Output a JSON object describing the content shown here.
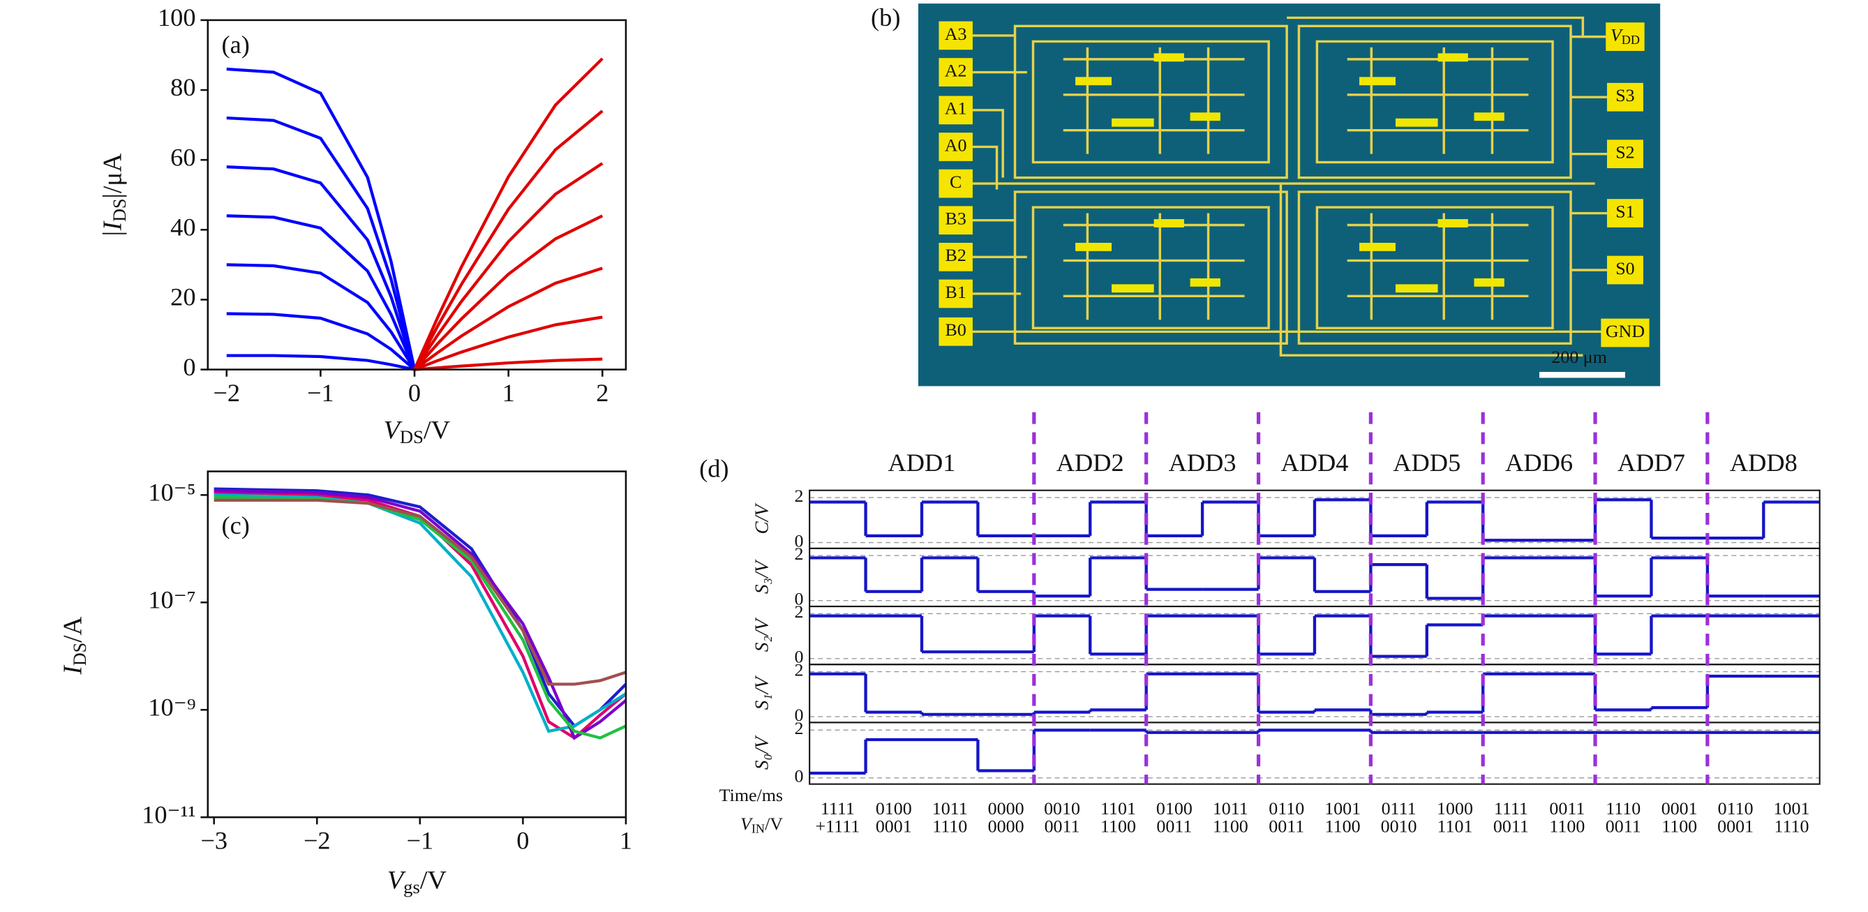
{
  "chart_data": [
    {
      "type": "line",
      "label": "(a)",
      "xlabel": [
        "V",
        "DS",
        "/V"
      ],
      "ylabel": [
        "|I",
        "DS",
        "|/μA"
      ],
      "x": [
        -2,
        -1.5,
        -1,
        -0.5,
        -0.25,
        0,
        0.25,
        0.5,
        1,
        1.5,
        2
      ],
      "xlim": [
        -2.2,
        2.25
      ],
      "ylim": [
        0,
        100
      ],
      "xticks": [
        {
          "value": -2,
          "label": "−2"
        },
        {
          "value": -1,
          "label": "−1"
        },
        0,
        1,
        2
      ],
      "yticks": [
        0,
        20,
        40,
        60,
        80,
        100
      ],
      "series": [
        {
          "color": "#0000ff",
          "values": [
            86,
            85.1,
            79.1,
            55.0,
            31.0,
            0,
            null,
            null,
            null,
            null,
            null
          ]
        },
        {
          "color": "#0000ff",
          "values": [
            72,
            71.3,
            66.2,
            46.1,
            25.9,
            0,
            null,
            null,
            null,
            null,
            null
          ]
        },
        {
          "color": "#0000ff",
          "values": [
            58,
            57.4,
            53.4,
            37.1,
            20.9,
            0,
            null,
            null,
            null,
            null,
            null
          ]
        },
        {
          "color": "#0000ff",
          "values": [
            44,
            43.6,
            40.5,
            28.2,
            15.8,
            0,
            null,
            null,
            null,
            null,
            null
          ]
        },
        {
          "color": "#0000ff",
          "values": [
            30,
            29.7,
            27.6,
            19.2,
            10.8,
            0,
            null,
            null,
            null,
            null,
            null
          ]
        },
        {
          "color": "#0000ff",
          "values": [
            16,
            15.8,
            14.7,
            10.2,
            5.8,
            0,
            null,
            null,
            null,
            null,
            null
          ]
        },
        {
          "color": "#0000ff",
          "values": [
            4,
            4.0,
            3.7,
            2.6,
            1.4,
            0,
            null,
            null,
            null,
            null,
            null
          ]
        },
        {
          "color": "#e00000",
          "values": [
            null,
            null,
            null,
            null,
            null,
            0,
            15.1,
            29.4,
            55.2,
            75.7,
            89
          ]
        },
        {
          "color": "#e00000",
          "values": [
            null,
            null,
            null,
            null,
            null,
            0,
            12.6,
            24.4,
            45.9,
            62.9,
            74
          ]
        },
        {
          "color": "#e00000",
          "values": [
            null,
            null,
            null,
            null,
            null,
            0,
            10.0,
            19.5,
            36.6,
            50.2,
            59
          ]
        },
        {
          "color": "#e00000",
          "values": [
            null,
            null,
            null,
            null,
            null,
            0,
            7.5,
            14.5,
            27.3,
            37.4,
            44
          ]
        },
        {
          "color": "#e00000",
          "values": [
            null,
            null,
            null,
            null,
            null,
            0,
            4.9,
            9.6,
            18.0,
            24.7,
            29
          ]
        },
        {
          "color": "#e00000",
          "values": [
            null,
            null,
            null,
            null,
            null,
            0,
            2.6,
            5.0,
            9.3,
            12.8,
            15
          ]
        },
        {
          "color": "#e00000",
          "values": [
            null,
            null,
            null,
            null,
            null,
            0,
            0.5,
            1.0,
            1.9,
            2.6,
            3
          ]
        }
      ]
    },
    {
      "type": "image",
      "label": "(b)",
      "pads_left": [
        "A3",
        "A2",
        "A1",
        "A0",
        "C",
        "B3",
        "B2",
        "B1",
        "B0"
      ],
      "vdd": [
        "V",
        "DD"
      ],
      "pads_right": [
        "S3",
        "S2",
        "S1",
        "S0",
        "GND"
      ],
      "scale_bar": "200 μm"
    },
    {
      "type": "line",
      "label": "(c)",
      "log_y": true,
      "xlabel": [
        "V",
        "gs",
        "/V"
      ],
      "ylabel": [
        "I",
        "DS",
        "/A"
      ],
      "x": [
        -3,
        -2,
        -1.5,
        -1,
        -0.5,
        0,
        0.25,
        0.5,
        0.75,
        1
      ],
      "xlim": [
        -3.06,
        1
      ],
      "ylim": [
        1e-11,
        2.75e-05
      ],
      "xticks": [
        {
          "value": -3,
          "label": "−3"
        },
        {
          "value": -2,
          "label": "−2"
        },
        {
          "value": -1,
          "label": "−1"
        },
        0,
        1
      ],
      "yticks": [
        {
          "value": 1e-11,
          "label": "10⁻¹¹"
        },
        {
          "value": 1e-09,
          "label": "10⁻⁹"
        },
        {
          "value": 1e-07,
          "label": "10⁻⁷"
        },
        {
          "value": 1e-05,
          "label": "10⁻⁵"
        }
      ],
      "series": [
        {
          "color": "#1f1fcc",
          "values": [
            1.3e-05,
            1.2e-05,
            1e-05,
            6e-06,
            1e-06,
            3e-08,
            2e-09,
            5e-10,
            1e-09,
            3e-09
          ]
        },
        {
          "color": "#e0006a",
          "values": [
            1.1e-05,
            1e-05,
            8e-06,
            4e-06,
            5e-07,
            1e-08,
            6e-10,
            3e-10,
            8e-10,
            2e-09
          ]
        },
        {
          "color": "#00b0c8",
          "values": [
            1e-05,
            9e-06,
            7e-06,
            3e-06,
            3e-07,
            5e-09,
            4e-10,
            5e-10,
            1e-09,
            2e-09
          ]
        },
        {
          "color": "#7a00cc",
          "values": [
            1.2e-05,
            1.1e-05,
            9e-06,
            5e-06,
            8e-07,
            4e-08,
            4e-09,
            3e-10,
            6e-10,
            1.5e-09
          ]
        },
        {
          "color": "#20c040",
          "values": [
            9e-06,
            8.5e-06,
            7e-06,
            3.5e-06,
            6e-07,
            2e-08,
            1.5e-09,
            4e-10,
            3e-10,
            5e-10
          ]
        },
        {
          "color": "#a05050",
          "values": [
            8e-06,
            8e-06,
            7e-06,
            4e-06,
            7e-07,
            3e-08,
            3e-09,
            3e-09,
            3.5e-09,
            5e-09
          ]
        }
      ]
    },
    {
      "type": "step",
      "label": "(d)",
      "xlabel": "Time/ms",
      "input_label": [
        "V",
        "IN",
        "/V"
      ],
      "ylim": [
        -0.26,
        2.32
      ],
      "yticks": [
        0,
        2
      ],
      "color": "#1515c8",
      "divider_color": "#9b30d9",
      "groups": [
        {
          "name": "ADD1",
          "inputs": [
            [
              "1111",
              "+1111"
            ],
            [
              "0100",
              "0001"
            ],
            [
              "1011",
              "1110"
            ],
            [
              "0000",
              "0000"
            ]
          ]
        },
        {
          "name": "ADD2",
          "inputs": [
            [
              "0010",
              "0011"
            ],
            [
              "1101",
              "1100"
            ]
          ]
        },
        {
          "name": "ADD3",
          "inputs": [
            [
              "0100",
              "0011"
            ],
            [
              "1011",
              "1100"
            ]
          ]
        },
        {
          "name": "ADD4",
          "inputs": [
            [
              "0110",
              "0011"
            ],
            [
              "1001",
              "1100"
            ]
          ]
        },
        {
          "name": "ADD5",
          "inputs": [
            [
              "0111",
              "0010"
            ],
            [
              "1000",
              "1101"
            ]
          ]
        },
        {
          "name": "ADD6",
          "inputs": [
            [
              "1111",
              "0011"
            ],
            [
              "0011",
              "1100"
            ]
          ]
        },
        {
          "name": "ADD7",
          "inputs": [
            [
              "1110",
              "0011"
            ],
            [
              "0001",
              "1100"
            ]
          ]
        },
        {
          "name": "ADD8",
          "inputs": [
            [
              "0110",
              "0001"
            ],
            [
              "1001",
              "1110"
            ]
          ]
        }
      ],
      "series": [
        {
          "name": "C/V",
          "values": [
            1.8,
            0.3,
            1.8,
            0.3,
            0.3,
            1.8,
            0.3,
            1.8,
            0.3,
            1.9,
            0.3,
            1.8,
            0.1,
            0.1,
            1.9,
            0.2,
            0.2,
            1.8
          ]
        },
        {
          "name": "S₃/V",
          "values": [
            1.9,
            0.4,
            1.9,
            0.4,
            0.2,
            1.9,
            0.5,
            0.5,
            1.9,
            0.4,
            1.6,
            0.1,
            1.9,
            1.9,
            0.2,
            1.9,
            0.2,
            0.2
          ]
        },
        {
          "name": "S₂/V",
          "values": [
            1.9,
            1.9,
            0.3,
            0.3,
            1.9,
            0.2,
            1.9,
            1.9,
            0.2,
            1.9,
            0.1,
            1.5,
            1.9,
            1.9,
            0.2,
            1.9,
            1.9,
            1.9
          ]
        },
        {
          "name": "S₁/V",
          "values": [
            1.9,
            0.2,
            0.1,
            0.1,
            0.2,
            0.3,
            1.9,
            1.9,
            0.2,
            0.3,
            0.1,
            0.2,
            1.9,
            1.9,
            0.3,
            0.4,
            1.8,
            1.8
          ]
        },
        {
          "name": "S₀/V",
          "values": [
            0.2,
            1.6,
            1.6,
            0.3,
            2.0,
            2.0,
            1.9,
            1.9,
            2.0,
            2.0,
            1.9,
            1.9,
            1.9,
            1.9,
            1.9,
            1.9,
            1.9,
            1.9
          ]
        }
      ]
    }
  ]
}
